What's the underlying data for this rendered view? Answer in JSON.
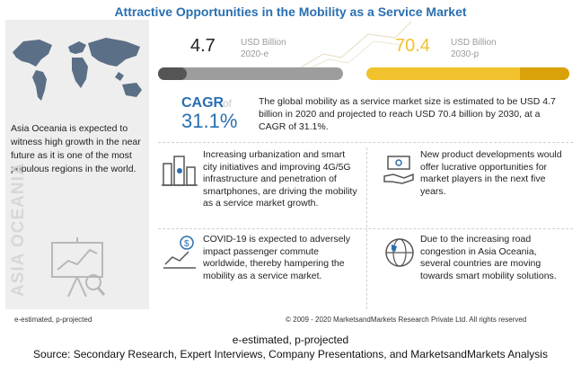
{
  "title": "Attractive Opportunities in the Mobility as a Service Market",
  "left": {
    "text": "Asia Oceania is expected to witness high growth in the near future as it is one of the most populous regions in the world.",
    "vertical_label": "ASIA OCEANIA"
  },
  "market_2020": {
    "value": "4.7",
    "unit": "USD Billion",
    "year": "2020-e"
  },
  "market_2030": {
    "value": "70.4",
    "unit": "USD Billion",
    "year": "2030-p"
  },
  "cagr": {
    "label": "CAGR",
    "of": "of",
    "value": "31.1%"
  },
  "summary": "The global mobility as a service market size is estimated to be USD 4.7 billion in 2020 and projected to reach USD 70.4 billion by 2030, at a CAGR of 31.1%.",
  "points": [
    {
      "text": "Increasing urbanization and smart city initiatives and improving 4G/5G infrastructure and penetration of smartphones, are driving the mobility as a service market growth.",
      "icon": "smart-city-icon"
    },
    {
      "text": "New product developments would offer lucrative opportunities for market players in the next five years.",
      "icon": "money-hand-icon"
    },
    {
      "text": "COVID-19 is expected to adversely impact passenger commute worldwide, thereby hampering the mobility as a service market.",
      "icon": "dollar-chart-icon"
    },
    {
      "text": "Due to the increasing road congestion in Asia Oceania, several countries are moving towards smart mobility solutions.",
      "icon": "globe-icon"
    }
  ],
  "footer": {
    "legend": "e-estimated, p-projected",
    "copyright": "© 2009 - 2020 MarketsandMarkets Research Private Ltd. All rights reserved"
  },
  "caption": {
    "line1": "e-estimated, p-projected",
    "line2": "Source: Secondary Research, Expert Interviews, Company Presentations, and MarketsandMarkets Analysis"
  },
  "colors": {
    "title": "#2a6fb0",
    "accent_yellow": "#f2c12e",
    "bar_gray": "#9d9d9d"
  }
}
